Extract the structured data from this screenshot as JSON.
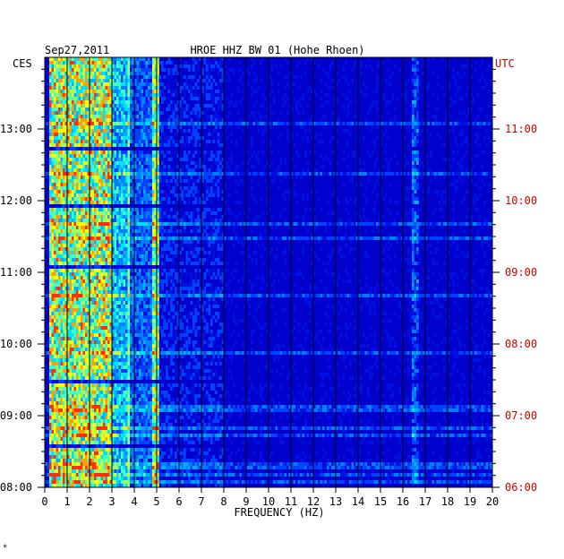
{
  "chart_data": {
    "type": "heatmap",
    "title": "HROE HHZ BW 01 (Hohe Rhoen)",
    "date": "Sep27,2011",
    "xlabel": "FREQUENCY (HZ)",
    "left_axis_label": "CES",
    "right_axis_label": "UTC",
    "xlim": [
      0,
      20
    ],
    "x_ticks": [
      "0",
      "1",
      "2",
      "3",
      "4",
      "5",
      "6",
      "7",
      "8",
      "9",
      "10",
      "11",
      "12",
      "13",
      "14",
      "15",
      "16",
      "17",
      "18",
      "19",
      "20"
    ],
    "left_time_ticks": [
      "13:00",
      "12:00",
      "11:00",
      "10:00",
      "09:00",
      "08:00"
    ],
    "right_time_ticks": [
      "11:00",
      "10:00",
      "09:00",
      "08:00",
      "07:00",
      "06:00"
    ],
    "time_range_hours": 6,
    "grid": true,
    "colors": {
      "background": "#0000cc",
      "low": "#0000a8",
      "mid": "#00c8ff",
      "high": "#ffff00",
      "peak": "#ff0000",
      "gridline": "#000000",
      "left_labels": "#000000",
      "right_labels": "#cc0000"
    },
    "energy_bands_hz": [
      {
        "from": 0.2,
        "to": 3.0,
        "intensity": "high"
      },
      {
        "from": 3.0,
        "to": 3.6,
        "intensity": "medium"
      },
      {
        "from": 3.7,
        "to": 3.8,
        "intensity": "line"
      },
      {
        "from": 4.8,
        "to": 5.1,
        "intensity": "line"
      },
      {
        "from": 16.3,
        "to": 16.6,
        "intensity": "intermittent"
      }
    ],
    "footnote": "*"
  }
}
